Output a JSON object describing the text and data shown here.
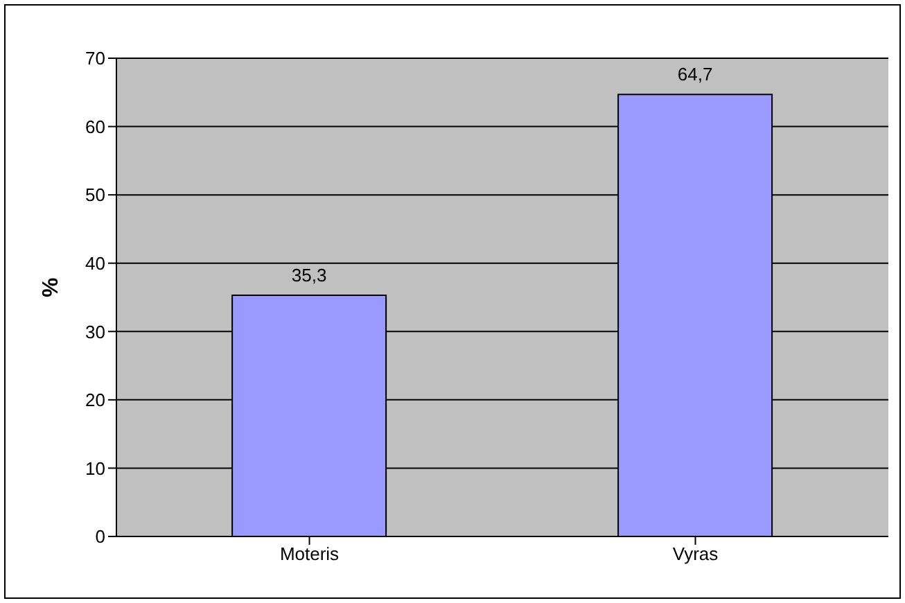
{
  "chart_data": {
    "type": "bar",
    "ylabel": "%",
    "categories": [
      "Moteris",
      "Vyras"
    ],
    "values": [
      35.3,
      64.7
    ],
    "value_labels": [
      "35,3",
      "64,7"
    ],
    "color": "#9999ff",
    "ylim": [
      0,
      70
    ],
    "yticks": [
      0,
      10,
      20,
      30,
      40,
      50,
      60,
      70
    ],
    "grid": "y"
  }
}
